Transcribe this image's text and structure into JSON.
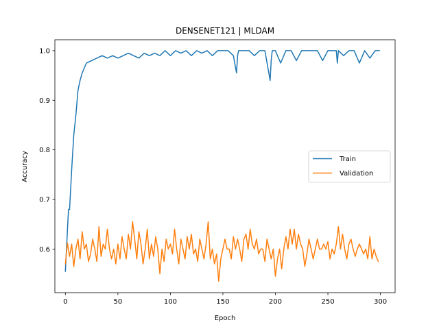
{
  "chart_data": {
    "type": "line",
    "title": "DENSENET121 | MLDAM",
    "xlabel": "Epoch",
    "ylabel": "Accuracy",
    "xlim": [
      -10,
      314
    ],
    "ylim": [
      0.512,
      1.022
    ],
    "xticks": [
      0,
      50,
      100,
      150,
      200,
      250,
      300
    ],
    "yticks": [
      0.6,
      0.7,
      0.8,
      0.9,
      1.0
    ],
    "ytick_labels": [
      "0.6",
      "0.7",
      "0.8",
      "0.9",
      "1.0"
    ],
    "grid": false,
    "legend_position": "center-right",
    "series": [
      {
        "name": "Train",
        "color": "#1f77b4",
        "x": [
          0,
          2,
          3,
          4,
          5,
          6,
          8,
          10,
          12,
          14,
          16,
          18,
          20,
          25,
          30,
          35,
          40,
          45,
          50,
          55,
          60,
          65,
          70,
          75,
          80,
          85,
          90,
          95,
          100,
          105,
          110,
          115,
          120,
          125,
          130,
          135,
          140,
          145,
          150,
          155,
          160,
          163,
          164,
          165,
          170,
          175,
          180,
          185,
          190,
          195,
          196,
          197,
          200,
          205,
          210,
          215,
          220,
          225,
          230,
          235,
          240,
          245,
          250,
          255,
          258,
          259,
          260,
          265,
          270,
          275,
          280,
          285,
          290,
          295,
          299
        ],
        "values": [
          0.555,
          0.64,
          0.68,
          0.68,
          0.72,
          0.76,
          0.83,
          0.87,
          0.92,
          0.94,
          0.955,
          0.965,
          0.975,
          0.98,
          0.985,
          0.99,
          0.985,
          0.99,
          0.985,
          0.99,
          0.995,
          0.99,
          0.985,
          0.995,
          0.99,
          0.995,
          0.99,
          1.0,
          0.99,
          1.0,
          0.995,
          1.0,
          0.99,
          1.0,
          0.995,
          1.0,
          0.99,
          1.0,
          1.0,
          1.0,
          0.99,
          0.955,
          0.99,
          1.0,
          1.0,
          1.0,
          0.99,
          1.0,
          1.0,
          0.94,
          0.98,
          1.0,
          1.0,
          0.975,
          1.0,
          1.0,
          0.98,
          1.0,
          1.0,
          1.0,
          1.0,
          0.98,
          1.0,
          1.0,
          1.0,
          0.975,
          1.0,
          0.99,
          1.0,
          1.0,
          0.975,
          1.0,
          0.985,
          1.0,
          1.0
        ]
      },
      {
        "name": "Validation",
        "color": "#ff7f0e",
        "x": [
          0,
          2,
          4,
          6,
          8,
          10,
          12,
          14,
          16,
          18,
          20,
          22,
          24,
          26,
          28,
          30,
          32,
          34,
          36,
          38,
          40,
          42,
          44,
          46,
          48,
          50,
          52,
          54,
          56,
          58,
          60,
          62,
          64,
          66,
          68,
          70,
          72,
          74,
          76,
          78,
          80,
          82,
          84,
          86,
          88,
          90,
          92,
          94,
          96,
          98,
          100,
          102,
          104,
          106,
          108,
          110,
          112,
          114,
          116,
          118,
          120,
          122,
          124,
          126,
          128,
          130,
          132,
          134,
          136,
          138,
          140,
          142,
          144,
          146,
          148,
          150,
          152,
          154,
          156,
          158,
          160,
          162,
          164,
          166,
          168,
          170,
          172,
          174,
          176,
          178,
          180,
          182,
          184,
          186,
          188,
          190,
          192,
          194,
          196,
          198,
          200,
          202,
          204,
          206,
          208,
          210,
          212,
          214,
          216,
          218,
          220,
          222,
          224,
          226,
          228,
          230,
          232,
          234,
          236,
          238,
          240,
          242,
          244,
          246,
          248,
          250,
          252,
          254,
          256,
          258,
          260,
          262,
          264,
          266,
          268,
          270,
          272,
          274,
          276,
          278,
          280,
          282,
          284,
          286,
          288,
          290,
          292,
          294,
          296,
          298
        ],
        "values": [
          0.57,
          0.612,
          0.585,
          0.61,
          0.565,
          0.6,
          0.62,
          0.58,
          0.635,
          0.6,
          0.61,
          0.575,
          0.59,
          0.62,
          0.6,
          0.575,
          0.645,
          0.585,
          0.61,
          0.6,
          0.64,
          0.6,
          0.58,
          0.6,
          0.57,
          0.61,
          0.58,
          0.625,
          0.6,
          0.58,
          0.63,
          0.6,
          0.655,
          0.62,
          0.58,
          0.635,
          0.61,
          0.57,
          0.6,
          0.64,
          0.58,
          0.61,
          0.585,
          0.625,
          0.6,
          0.55,
          0.6,
          0.575,
          0.62,
          0.6,
          0.61,
          0.59,
          0.64,
          0.6,
          0.57,
          0.62,
          0.6,
          0.58,
          0.625,
          0.6,
          0.63,
          0.59,
          0.6,
          0.575,
          0.62,
          0.6,
          0.58,
          0.61,
          0.655,
          0.58,
          0.6,
          0.57,
          0.59,
          0.535,
          0.58,
          0.6,
          0.62,
          0.6,
          0.6,
          0.58,
          0.625,
          0.6,
          0.62,
          0.6,
          0.575,
          0.62,
          0.63,
          0.6,
          0.64,
          0.61,
          0.6,
          0.62,
          0.59,
          0.6,
          0.6,
          0.575,
          0.62,
          0.6,
          0.58,
          0.6,
          0.545,
          0.58,
          0.6,
          0.56,
          0.6,
          0.625,
          0.6,
          0.64,
          0.61,
          0.64,
          0.6,
          0.63,
          0.61,
          0.6,
          0.565,
          0.59,
          0.62,
          0.6,
          0.58,
          0.6,
          0.62,
          0.6,
          0.6,
          0.61,
          0.6,
          0.615,
          0.58,
          0.6,
          0.59,
          0.61,
          0.645,
          0.6,
          0.63,
          0.6,
          0.58,
          0.61,
          0.62,
          0.6,
          0.585,
          0.6,
          0.61,
          0.6,
          0.59,
          0.6,
          0.58,
          0.625,
          0.58,
          0.6,
          0.585,
          0.575
        ]
      }
    ]
  }
}
